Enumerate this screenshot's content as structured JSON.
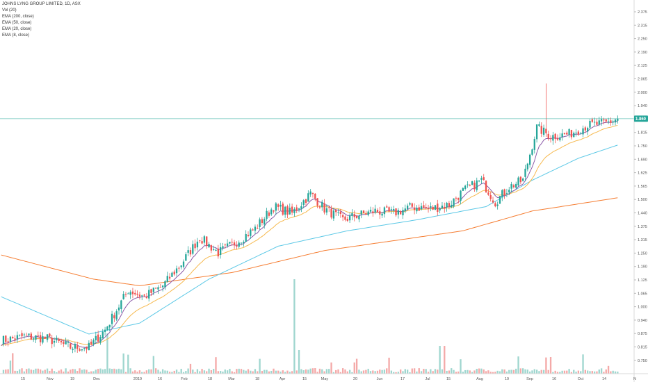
{
  "legend": {
    "title": "JOHNS LYNG GROUP LIMITED, 1D, ASX",
    "indicators": [
      "Vol (20)",
      "EMA (200, close)",
      "EMA (50, close)",
      "EMA (20, close)",
      "EMA (8, close)"
    ]
  },
  "price_tag": "1.860",
  "colors": {
    "up": "#26a69a",
    "down": "#ef5350",
    "vol_up": "#9fd6cf",
    "vol_down": "#f4a9a8",
    "ema200": "#f57c30",
    "ema50": "#5bc8e6",
    "ema20": "#f6b94e",
    "ema8": "#8b5aa8",
    "last_line": "#26a69a"
  },
  "chart_data": {
    "type": "candlestick",
    "y_axis_ticks": [
      "2.375",
      "2.315",
      "2.250",
      "2.190",
      "2.125",
      "2.065",
      "2.000",
      "1.940",
      "1.875",
      "1.815",
      "1.750",
      "1.690",
      "1.625",
      "1.565",
      "1.500",
      "1.440",
      "1.375",
      "1.315",
      "1.250",
      "1.190",
      "1.125",
      "1.065",
      "1.000",
      "0.940",
      "0.875",
      "0.815",
      "0.750"
    ],
    "x_axis_ticks": [
      "15",
      "Nov",
      "19",
      "Dec",
      "2019",
      "16",
      "Feb",
      "18",
      "Mar",
      "18",
      "Apr",
      "15",
      "May",
      "20",
      "Jun",
      "17",
      "Jul",
      "15",
      "Aug",
      "19",
      "Sep",
      "16",
      "Oct",
      "14",
      "N"
    ],
    "ylim": [
      0.7,
      2.4
    ],
    "last_price": 1.86,
    "sessions": 268,
    "close_anchors": [
      [
        0,
        0.85
      ],
      [
        10,
        0.87
      ],
      [
        20,
        0.86
      ],
      [
        30,
        0.82
      ],
      [
        38,
        0.82
      ],
      [
        45,
        0.9
      ],
      [
        55,
        1.08
      ],
      [
        62,
        1.05
      ],
      [
        70,
        1.1
      ],
      [
        78,
        1.2
      ],
      [
        86,
        1.32
      ],
      [
        94,
        1.25
      ],
      [
        102,
        1.3
      ],
      [
        110,
        1.36
      ],
      [
        118,
        1.46
      ],
      [
        126,
        1.43
      ],
      [
        134,
        1.52
      ],
      [
        140,
        1.45
      ],
      [
        148,
        1.4
      ],
      [
        154,
        1.42
      ],
      [
        162,
        1.44
      ],
      [
        170,
        1.43
      ],
      [
        178,
        1.46
      ],
      [
        186,
        1.45
      ],
      [
        194,
        1.47
      ],
      [
        200,
        1.53
      ],
      [
        208,
        1.58
      ],
      [
        214,
        1.48
      ],
      [
        220,
        1.55
      ],
      [
        226,
        1.58
      ],
      [
        232,
        1.82
      ],
      [
        238,
        1.78
      ],
      [
        246,
        1.79
      ],
      [
        254,
        1.83
      ],
      [
        262,
        1.84
      ],
      [
        267,
        1.86
      ]
    ],
    "ema200": [
      [
        0,
        1.24
      ],
      [
        40,
        1.13
      ],
      [
        60,
        1.1
      ],
      [
        100,
        1.16
      ],
      [
        140,
        1.26
      ],
      [
        200,
        1.35
      ],
      [
        230,
        1.44
      ],
      [
        267,
        1.5
      ]
    ],
    "ema50": [
      [
        0,
        1.05
      ],
      [
        38,
        0.88
      ],
      [
        60,
        0.93
      ],
      [
        90,
        1.13
      ],
      [
        120,
        1.28
      ],
      [
        150,
        1.35
      ],
      [
        180,
        1.4
      ],
      [
        210,
        1.46
      ],
      [
        230,
        1.58
      ],
      [
        250,
        1.68
      ],
      [
        267,
        1.74
      ]
    ]
  }
}
